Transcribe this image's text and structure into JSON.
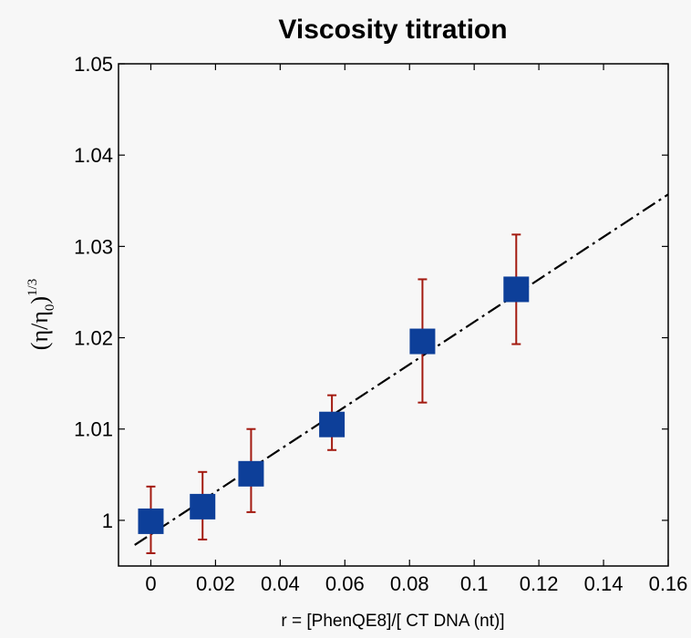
{
  "chart_data": {
    "type": "scatter",
    "title": "Viscosity titration",
    "xlabel": "r = [PhenQE8]/[ CT DNA (nt)]",
    "ylabel_base": "(η/η",
    "ylabel_sub": "0",
    "ylabel_close": ")",
    "ylabel_sup": "1/3",
    "xlim": [
      -0.01,
      0.16
    ],
    "ylim": [
      0.995,
      1.05
    ],
    "xticks": [
      0,
      0.02,
      0.04,
      0.06,
      0.08,
      0.1,
      0.12,
      0.14,
      0.16
    ],
    "xtick_labels": [
      "0",
      "0.02",
      "0.04",
      "0.06",
      "0.08",
      "0.1",
      "0.12",
      "0.14",
      "0.16"
    ],
    "yticks": [
      1,
      1.01,
      1.02,
      1.03,
      1.04,
      1.05
    ],
    "ytick_labels": [
      "1",
      "1.01",
      "1.02",
      "1.03",
      "1.04",
      "1.05"
    ],
    "grid": false,
    "series": [
      {
        "marker": "square",
        "color": "#0d3f99",
        "x": [
          0,
          0.016,
          0.031,
          0.056,
          0.084,
          0.113
        ],
        "y": [
          0.9999,
          1.0015,
          1.0051,
          1.0105,
          1.0196,
          1.0253
        ],
        "err_low": [
          0.9964,
          0.9979,
          1.0009,
          1.0077,
          1.0129,
          1.0193
        ],
        "err_high": [
          1.0037,
          1.0053,
          1.01,
          1.0137,
          1.0264,
          1.0313
        ],
        "err_color": "#a31a10"
      }
    ],
    "fit_line": {
      "style": "dash-dot",
      "color": "#000000",
      "x": [
        -0.005,
        0.16
      ],
      "y": [
        0.9973,
        1.0357
      ]
    }
  }
}
